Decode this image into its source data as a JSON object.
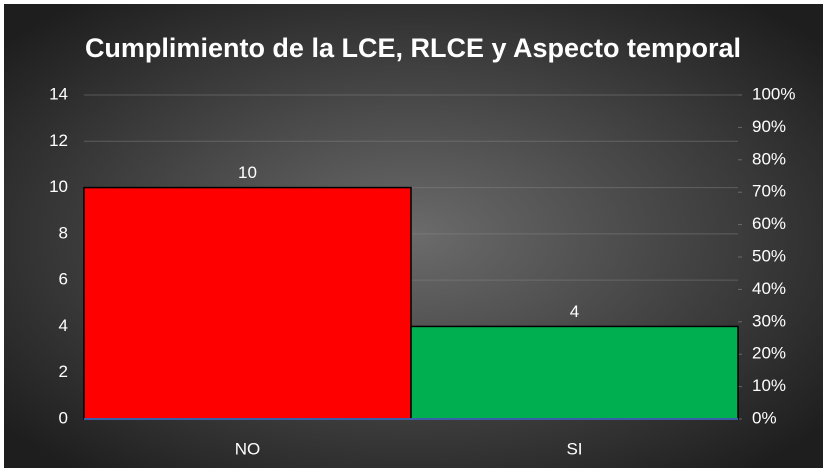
{
  "chart_data": {
    "type": "bar",
    "title": "Cumplimiento de la LCE, RLCE y Aspecto temporal",
    "categories": [
      "NO",
      "SI"
    ],
    "values": [
      10,
      4
    ],
    "colors": [
      "#ff0000",
      "#00b050"
    ],
    "ylim": [
      0,
      14
    ],
    "yticks": [
      0,
      2,
      4,
      6,
      8,
      10,
      12,
      14
    ],
    "y2lim": [
      0,
      100
    ],
    "y2ticks": [
      {
        "value": 0,
        "label": "0%"
      },
      {
        "value": 10,
        "label": "10%"
      },
      {
        "value": 20,
        "label": "20%"
      },
      {
        "value": 30,
        "label": "30%"
      },
      {
        "value": 40,
        "label": "40%"
      },
      {
        "value": 50,
        "label": "50%"
      },
      {
        "value": 60,
        "label": "60%"
      },
      {
        "value": 70,
        "label": "70%"
      },
      {
        "value": 80,
        "label": "80%"
      },
      {
        "value": 90,
        "label": "90%"
      },
      {
        "value": 100,
        "label": "100%"
      }
    ],
    "grid": true
  }
}
